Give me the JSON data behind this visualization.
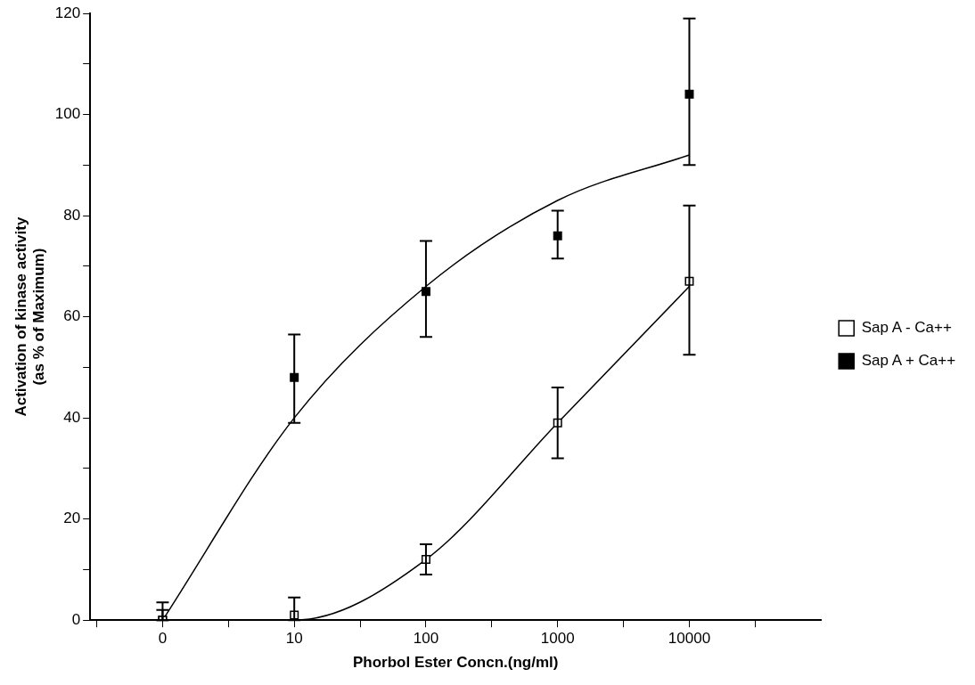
{
  "chart_data": {
    "type": "scatter",
    "xlabel": "Phorbol Ester Concn.(ng/ml)",
    "ylabel": "Activation of kinase activity\n(as % of Maximum)",
    "categories": [
      "0",
      "10",
      "100",
      "1000",
      "10000"
    ],
    "ylim": [
      0,
      120
    ],
    "yticks": [
      0,
      {
        "value": 10,
        "label": null
      },
      20,
      {
        "value": 30,
        "label": null
      },
      40,
      {
        "value": 50,
        "label": null
      },
      60,
      {
        "value": 70,
        "label": null
      },
      80,
      {
        "value": 90,
        "label": null
      },
      100,
      {
        "value": 110,
        "label": null
      },
      120
    ],
    "grid": false,
    "legend": "right",
    "marker": "square",
    "series": [
      {
        "name": "Sap A - Ca++",
        "color": "#ffffff",
        "values": [
          0,
          1,
          12,
          39,
          67
        ],
        "errors": [
          [
            0,
            2
          ],
          [
            0,
            4.5
          ],
          [
            9,
            15
          ],
          [
            32,
            46
          ],
          [
            52.5,
            82
          ]
        ]
      },
      {
        "name": "Sap A + Ca++",
        "color": "#000000",
        "values": [
          0,
          48,
          65,
          76,
          104
        ],
        "errors": [
          [
            0,
            3.5
          ],
          [
            39,
            56.5
          ],
          [
            56,
            75
          ],
          [
            71.5,
            81
          ],
          [
            90,
            119
          ]
        ]
      },
      {
        "type": "line",
        "color": "#000000",
        "marker": "none",
        "values": [
          0,
          0,
          12,
          39,
          66
        ]
      },
      {
        "type": "line",
        "color": "#000000",
        "marker": "none",
        "values": [
          0,
          40,
          66,
          83,
          92
        ]
      }
    ]
  }
}
